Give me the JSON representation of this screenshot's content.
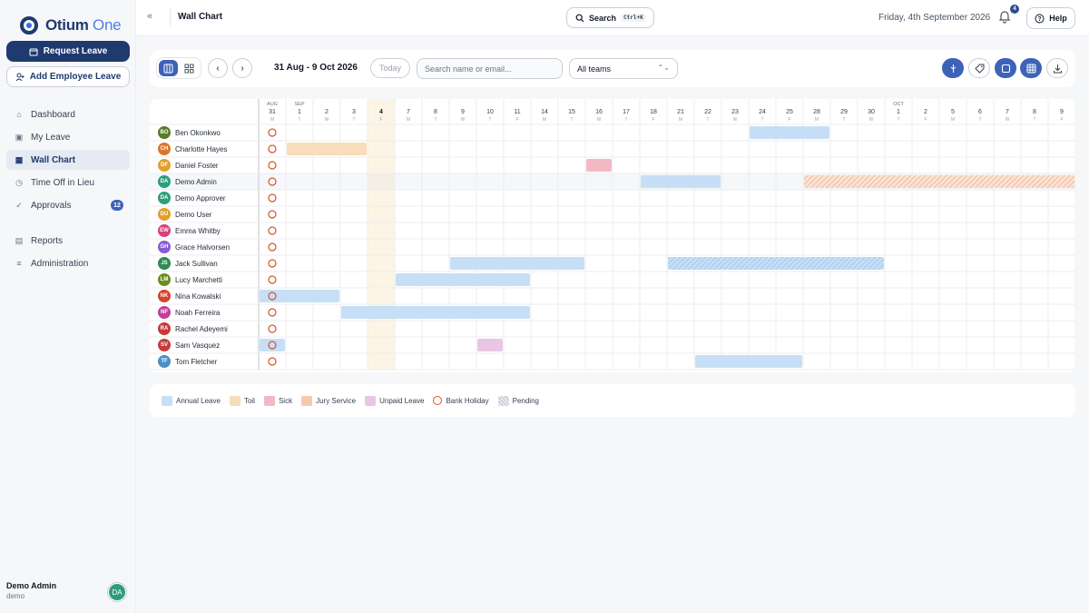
{
  "app": {
    "logo_primary": "Otium",
    "logo_accent": " One"
  },
  "sidebar": {
    "request_leave": "Request Leave",
    "add_employee_leave": "Add Employee Leave",
    "items": [
      {
        "label": "Dashboard",
        "icon": "home-icon"
      },
      {
        "label": "My Leave",
        "icon": "calendar-icon"
      },
      {
        "label": "Wall Chart",
        "icon": "calendar-grid-icon",
        "active": true
      },
      {
        "label": "Time Off in Lieu",
        "icon": "clock-icon"
      },
      {
        "label": "Approvals",
        "icon": "check-circle-icon",
        "badge": "12"
      },
      {
        "label": "Reports",
        "icon": "document-icon"
      },
      {
        "label": "Administration",
        "icon": "sliders-icon"
      }
    ],
    "user": {
      "name": "Demo Admin",
      "sub": "demo",
      "initials": "DA"
    }
  },
  "topbar": {
    "title": "Wall Chart",
    "search_label": "Search",
    "search_shortcut": "Ctrl+K",
    "date": "Friday, 4th September 2026",
    "notifications": "4",
    "help": "Help"
  },
  "toolbar": {
    "range": "31 Aug - 9 Oct 2026",
    "today": "Today",
    "search_placeholder": "Search name or email...",
    "team_filter": "All teams"
  },
  "calendar": {
    "days": [
      {
        "m": "AUG",
        "d": "31",
        "w": "M"
      },
      {
        "m": "SEP",
        "d": "1",
        "w": "T"
      },
      {
        "m": "",
        "d": "2",
        "w": "W"
      },
      {
        "m": "",
        "d": "3",
        "w": "T"
      },
      {
        "m": "",
        "d": "4",
        "w": "F",
        "today": true
      },
      {
        "m": "",
        "d": "7",
        "w": "M"
      },
      {
        "m": "",
        "d": "8",
        "w": "T"
      },
      {
        "m": "",
        "d": "9",
        "w": "W"
      },
      {
        "m": "",
        "d": "10",
        "w": "T"
      },
      {
        "m": "",
        "d": "11",
        "w": "F"
      },
      {
        "m": "",
        "d": "14",
        "w": "M"
      },
      {
        "m": "",
        "d": "15",
        "w": "T"
      },
      {
        "m": "",
        "d": "16",
        "w": "W"
      },
      {
        "m": "",
        "d": "17",
        "w": "T"
      },
      {
        "m": "",
        "d": "18",
        "w": "F"
      },
      {
        "m": "",
        "d": "21",
        "w": "M"
      },
      {
        "m": "",
        "d": "22",
        "w": "T"
      },
      {
        "m": "",
        "d": "23",
        "w": "W"
      },
      {
        "m": "",
        "d": "24",
        "w": "T"
      },
      {
        "m": "",
        "d": "25",
        "w": "F"
      },
      {
        "m": "",
        "d": "28",
        "w": "M"
      },
      {
        "m": "",
        "d": "29",
        "w": "T"
      },
      {
        "m": "",
        "d": "30",
        "w": "W"
      },
      {
        "m": "OCT",
        "d": "1",
        "w": "T"
      },
      {
        "m": "",
        "d": "2",
        "w": "F"
      },
      {
        "m": "",
        "d": "5",
        "w": "M"
      },
      {
        "m": "",
        "d": "6",
        "w": "T"
      },
      {
        "m": "",
        "d": "7",
        "w": "W"
      },
      {
        "m": "",
        "d": "8",
        "w": "T"
      },
      {
        "m": "",
        "d": "9",
        "w": "F"
      }
    ],
    "employees": [
      {
        "initials": "BO",
        "name": "Ben Okonkwo",
        "color": "#5b7a2a"
      },
      {
        "initials": "CH",
        "name": "Charlotte Hayes",
        "color": "#d9772f"
      },
      {
        "initials": "DF",
        "name": "Daniel Foster",
        "color": "#e0a02e"
      },
      {
        "initials": "DA",
        "name": "Demo Admin",
        "color": "#2e9e7a",
        "highlight": true
      },
      {
        "initials": "DA",
        "name": "Demo Approver",
        "color": "#2e9e7a"
      },
      {
        "initials": "DU",
        "name": "Demo User",
        "color": "#e0a02e"
      },
      {
        "initials": "EW",
        "name": "Emma Whitby",
        "color": "#d9417a"
      },
      {
        "initials": "GH",
        "name": "Grace Halvorsen",
        "color": "#8a5ad6"
      },
      {
        "initials": "JS",
        "name": "Jack Sullivan",
        "color": "#2e8a4e"
      },
      {
        "initials": "LM",
        "name": "Lucy Marchetti",
        "color": "#6b8e23"
      },
      {
        "initials": "NK",
        "name": "Nina Kowalski",
        "color": "#d2452f"
      },
      {
        "initials": "NF",
        "name": "Noah Ferreira",
        "color": "#c0409a"
      },
      {
        "initials": "RA",
        "name": "Rachel Adeyemi",
        "color": "#c83a3a"
      },
      {
        "initials": "SV",
        "name": "Sam Vasquez",
        "color": "#c83a3a"
      },
      {
        "initials": "TF",
        "name": "Tom Fletcher",
        "color": "#4a90c8"
      }
    ],
    "leave": [
      {
        "row": 0,
        "start": 18,
        "end": 20,
        "type": "annual"
      },
      {
        "row": 1,
        "start": 1,
        "end": 3,
        "type": "toil"
      },
      {
        "row": 2,
        "start": 12,
        "end": 12,
        "type": "sick"
      },
      {
        "row": 3,
        "start": 14,
        "end": 16,
        "type": "annual"
      },
      {
        "row": 3,
        "start": 20,
        "end": 29,
        "type": "jury",
        "pending": true
      },
      {
        "row": 8,
        "start": 7,
        "end": 11,
        "type": "annual"
      },
      {
        "row": 8,
        "start": 15,
        "end": 22,
        "type": "annual",
        "pending": true
      },
      {
        "row": 9,
        "start": 5,
        "end": 9,
        "type": "annual"
      },
      {
        "row": 10,
        "start": 0,
        "end": 2,
        "type": "annual"
      },
      {
        "row": 11,
        "start": 3,
        "end": 9,
        "type": "annual"
      },
      {
        "row": 13,
        "start": 0,
        "end": 0,
        "type": "annual"
      },
      {
        "row": 13,
        "start": 8,
        "end": 8,
        "type": "unpaid"
      },
      {
        "row": 14,
        "start": 16,
        "end": 19,
        "type": "annual"
      }
    ],
    "bank_holiday_day": 0
  },
  "legend": [
    {
      "label": "Annual Leave",
      "type": "annual"
    },
    {
      "label": "Toil",
      "type": "toil"
    },
    {
      "label": "Sick",
      "type": "sick"
    },
    {
      "label": "Jury Service",
      "type": "jury"
    },
    {
      "label": "Unpaid Leave",
      "type": "unpaid"
    },
    {
      "label": "Bank Holiday",
      "type": "bankholiday"
    },
    {
      "label": "Pending",
      "type": "pending"
    }
  ],
  "colors": {
    "primary": "#1f3a6e",
    "accent": "#3d63b8",
    "annual": "#c6dff6",
    "toil": "#f7ddb9",
    "sick": "#f4b7c4",
    "jury": "#f6c9ad",
    "unpaid": "#e9c6e3",
    "bankholiday": "#d4532b",
    "today": "#fcf4e4"
  }
}
